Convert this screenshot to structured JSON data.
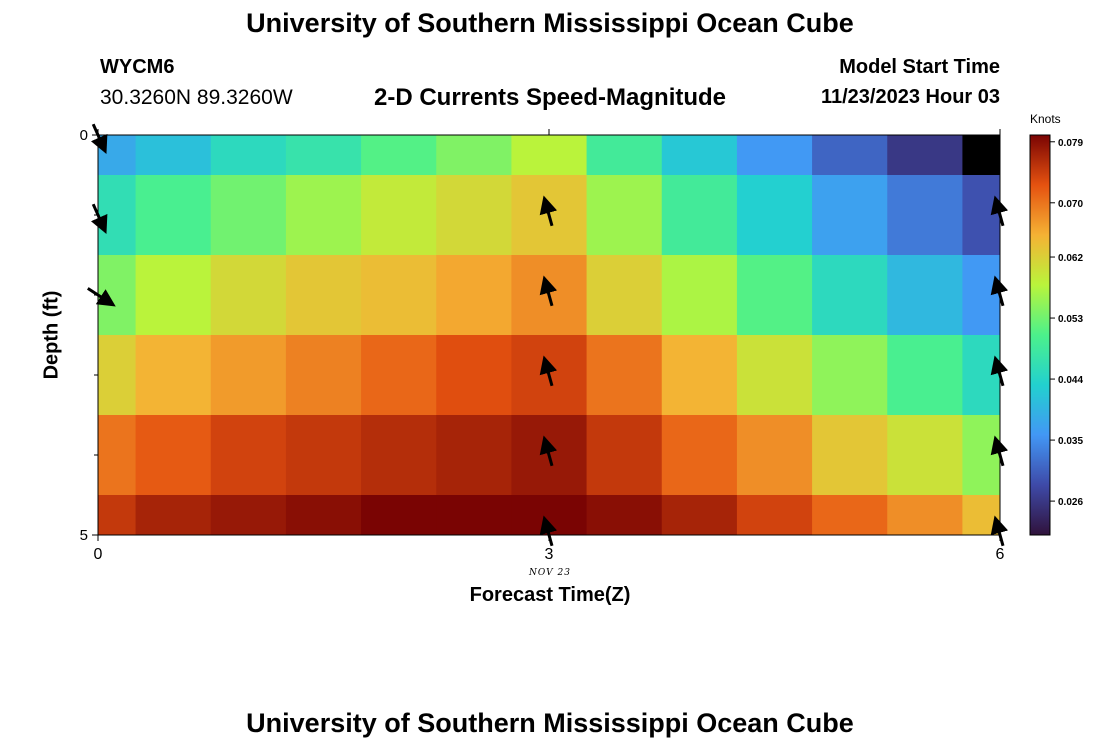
{
  "header": {
    "title": "University of Southern Mississippi Ocean Cube",
    "station": "WYCM6",
    "coordinates": "30.3260N  89.3260W",
    "subtitle": "2-D Currents Speed-Magnitude",
    "model_start_label": "Model Start Time",
    "model_start_value": "11/23/2023 Hour 03"
  },
  "footer": {
    "title": "University of Southern Mississippi Ocean Cube"
  },
  "chart_data": {
    "type": "heatmap",
    "title": "2-D Currents Speed-Magnitude",
    "xlabel": "Forecast Time(Z)",
    "ylabel": "Depth (ft)",
    "x_date_label": "NOV 23",
    "xlim": [
      0,
      6
    ],
    "ylim": [
      0,
      5
    ],
    "x_ticks": [
      0,
      3,
      6
    ],
    "y_ticks": [
      0,
      5
    ],
    "x_bins": [
      0,
      0.25,
      0.75,
      1.25,
      1.75,
      2.25,
      2.75,
      3.25,
      3.75,
      4.25,
      4.75,
      5.25,
      5.75,
      6
    ],
    "y_bins": [
      0,
      0.5,
      1.5,
      2.5,
      3.5,
      4.5,
      5
    ],
    "colorbar": {
      "label": "Knots",
      "min": 0.021,
      "max": 0.08,
      "ticks": [
        0.079,
        0.07,
        0.062,
        0.053,
        0.044,
        0.035,
        0.026
      ]
    },
    "values": [
      [
        0.038,
        0.041,
        0.045,
        0.047,
        0.051,
        0.054,
        0.058,
        0.049,
        0.042,
        0.036,
        0.031,
        0.026,
        0.021
      ],
      [
        0.046,
        0.05,
        0.053,
        0.056,
        0.059,
        0.061,
        0.063,
        0.056,
        0.049,
        0.043,
        0.037,
        0.033,
        0.029
      ],
      [
        0.054,
        0.058,
        0.061,
        0.063,
        0.064,
        0.066,
        0.068,
        0.062,
        0.057,
        0.051,
        0.045,
        0.04,
        0.036
      ],
      [
        0.062,
        0.065,
        0.067,
        0.069,
        0.071,
        0.073,
        0.074,
        0.07,
        0.065,
        0.06,
        0.055,
        0.05,
        0.045
      ],
      [
        0.07,
        0.072,
        0.074,
        0.075,
        0.076,
        0.077,
        0.078,
        0.075,
        0.071,
        0.068,
        0.063,
        0.06,
        0.055
      ],
      [
        0.075,
        0.077,
        0.078,
        0.079,
        0.08,
        0.08,
        0.08,
        0.079,
        0.077,
        0.074,
        0.071,
        0.068,
        0.064
      ]
    ],
    "arrows": [
      {
        "x": 0,
        "y": 0,
        "dx": 0.8,
        "dy": 1.8
      },
      {
        "x": 0,
        "y": 1,
        "dx": 0.8,
        "dy": 1.8
      },
      {
        "x": 0,
        "y": 2,
        "dx": 1.7,
        "dy": 1.1
      },
      {
        "x": 3,
        "y": 1,
        "dx": -0.5,
        "dy": -1.8
      },
      {
        "x": 3,
        "y": 2,
        "dx": -0.5,
        "dy": -1.8
      },
      {
        "x": 3,
        "y": 3,
        "dx": -0.5,
        "dy": -1.8
      },
      {
        "x": 3,
        "y": 4,
        "dx": -0.5,
        "dy": -1.8
      },
      {
        "x": 3,
        "y": 5,
        "dx": -0.5,
        "dy": -1.8
      },
      {
        "x": 6,
        "y": 1,
        "dx": -0.5,
        "dy": -1.8
      },
      {
        "x": 6,
        "y": 2,
        "dx": -0.5,
        "dy": -1.8
      },
      {
        "x": 6,
        "y": 3,
        "dx": -0.5,
        "dy": -1.8
      },
      {
        "x": 6,
        "y": 4,
        "dx": -0.5,
        "dy": -1.8
      },
      {
        "x": 6,
        "y": 5,
        "dx": -0.5,
        "dy": -1.8
      }
    ]
  }
}
